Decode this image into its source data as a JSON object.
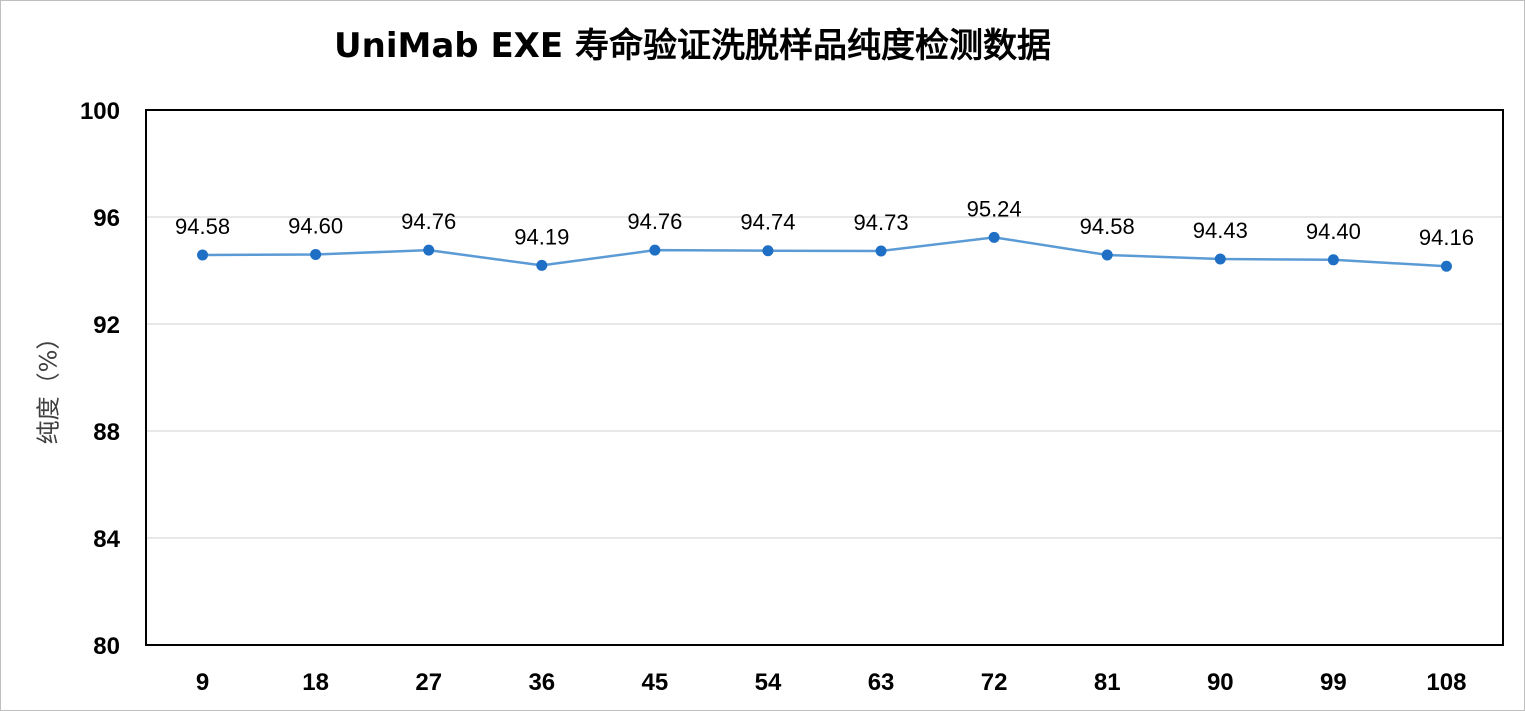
{
  "chart_data": {
    "type": "line",
    "title": "UniMab EXE 寿命验证洗脱样品纯度检测数据",
    "xlabel": "",
    "ylabel": "纯度（%）",
    "categories": [
      "9",
      "18",
      "27",
      "36",
      "45",
      "54",
      "63",
      "72",
      "81",
      "90",
      "99",
      "108"
    ],
    "series": [
      {
        "values": [
          94.58,
          94.6,
          94.76,
          94.19,
          94.76,
          94.74,
          94.73,
          95.24,
          94.58,
          94.43,
          94.4,
          94.16
        ],
        "data_labels": [
          "94.58",
          "94.60",
          "94.76",
          "94.19",
          "94.76",
          "94.74",
          "94.73",
          "95.24",
          "94.58",
          "94.43",
          "94.40",
          "94.16"
        ]
      }
    ],
    "ylim": [
      80,
      100
    ],
    "yticks": [
      "80",
      "84",
      "88",
      "92",
      "96",
      "100"
    ],
    "grid": true,
    "legend": "none",
    "colors": {
      "line": "#5b9bd5",
      "marker": "#1f6fc5",
      "grid": "#d9d9d9"
    }
  }
}
